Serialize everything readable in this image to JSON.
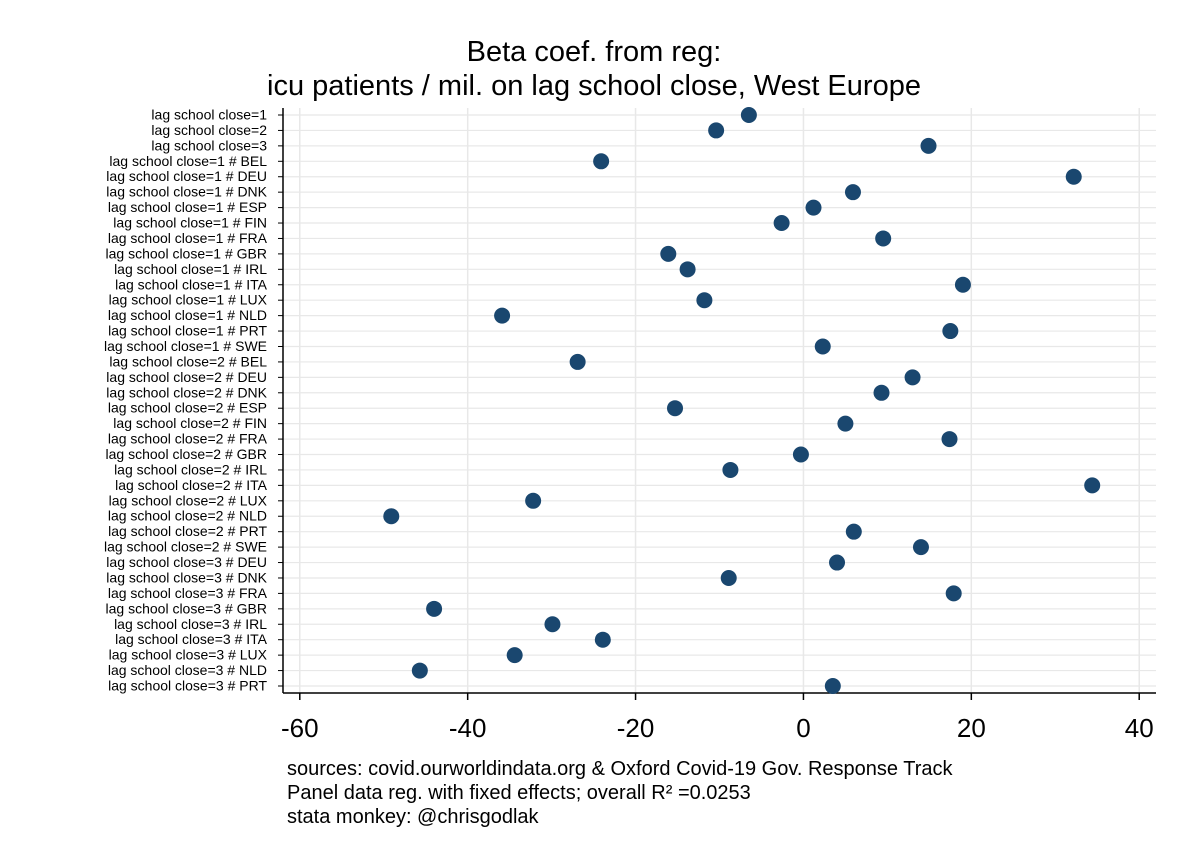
{
  "chart_data": {
    "type": "scatter",
    "title": [
      "Beta coef. from reg:",
      "icu patients / mil. on lag school close, West Europe"
    ],
    "xlabel": "",
    "ylabel": "",
    "xlim": [
      -62,
      42
    ],
    "xticks": [
      -60,
      -40,
      -20,
      0,
      20,
      40
    ],
    "grid": true,
    "legend": "none",
    "marker_color": "#1a476f",
    "categories": [
      "lag school close=1",
      "lag school close=2",
      "lag school close=3",
      "lag school close=1 # BEL",
      "lag school close=1 # DEU",
      "lag school close=1 # DNK",
      "lag school close=1 # ESP",
      "lag school close=1 # FIN",
      "lag school close=1 # FRA",
      "lag school close=1 # GBR",
      "lag school close=1 # IRL",
      "lag school close=1 # ITA",
      "lag school close=1 # LUX",
      "lag school close=1 # NLD",
      "lag school close=1 # PRT",
      "lag school close=1 # SWE",
      "lag school close=2 # BEL",
      "lag school close=2 # DEU",
      "lag school close=2 # DNK",
      "lag school close=2 # ESP",
      "lag school close=2 # FIN",
      "lag school close=2 # FRA",
      "lag school close=2 # GBR",
      "lag school close=2 # IRL",
      "lag school close=2 # ITA",
      "lag school close=2 # LUX",
      "lag school close=2 # NLD",
      "lag school close=2 # PRT",
      "lag school close=2 # SWE",
      "lag school close=3 # DEU",
      "lag school close=3 # DNK",
      "lag school close=3 # FRA",
      "lag school close=3 # GBR",
      "lag school close=3 # IRL",
      "lag school close=3 # ITA",
      "lag school close=3 # LUX",
      "lag school close=3 # NLD",
      "lag school close=3 # PRT"
    ],
    "values": [
      -6.5,
      -10.4,
      14.9,
      -24.1,
      32.2,
      5.9,
      1.2,
      -2.6,
      9.5,
      -16.1,
      -13.8,
      19.0,
      -11.8,
      -35.9,
      17.5,
      2.3,
      -26.9,
      13.0,
      9.3,
      -15.3,
      5.0,
      17.4,
      -0.3,
      -8.7,
      34.4,
      -32.2,
      -49.1,
      6.0,
      14.0,
      4.0,
      -8.9,
      17.9,
      -44.0,
      -29.9,
      -23.9,
      -34.4,
      -45.7,
      3.5
    ]
  },
  "notes": [
    "sources: covid.ourworldindata.org & Oxford Covid-19 Gov. Response Track",
    "Panel data reg. with fixed effects; overall R² =0.0253",
    "stata monkey: @chrisgodlak"
  ]
}
